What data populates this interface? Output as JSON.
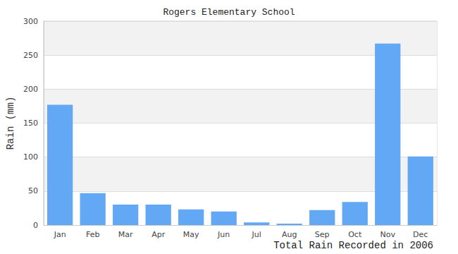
{
  "chart_data": {
    "type": "bar",
    "title": "Rogers Elementary School",
    "xlabel": "Total Rain Recorded in 2006",
    "ylabel": "Rain (mm)",
    "categories": [
      "Jan",
      "Feb",
      "Mar",
      "Apr",
      "May",
      "Jun",
      "Jul",
      "Aug",
      "Sep",
      "Oct",
      "Nov",
      "Dec"
    ],
    "values": [
      177,
      47,
      30,
      30,
      23,
      20,
      4,
      2,
      22,
      34,
      267,
      101
    ],
    "color": "#62a8f5",
    "ylim": [
      0,
      300
    ],
    "yticks": [
      0,
      50,
      100,
      150,
      200,
      250,
      300
    ],
    "grid": true
  }
}
